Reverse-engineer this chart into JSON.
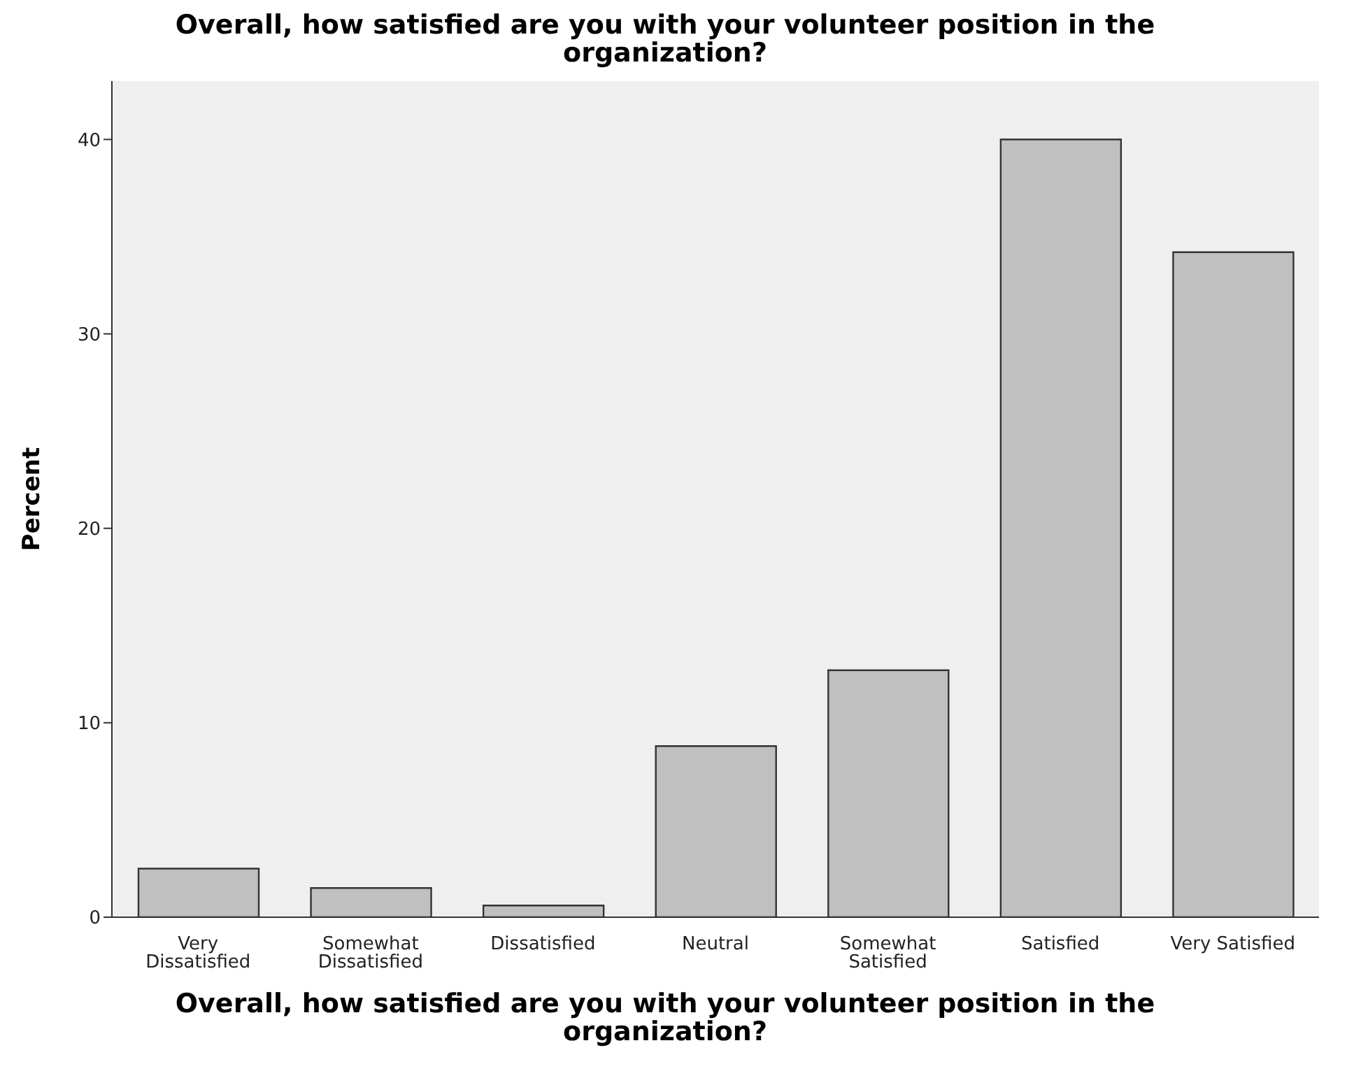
{
  "chart_data": {
    "type": "bar",
    "title": "Overall, how satisfied are you with your volunteer position in the organization?",
    "xlabel": "Overall, how satisfied are you with your volunteer position in the organization?",
    "ylabel": "Percent",
    "categories": [
      "Very Dissatisfied",
      "Somewhat Dissatisfied",
      "Dissatisfied",
      "Neutral",
      "Somewhat Satisfied",
      "Satisfied",
      "Very Satisfied"
    ],
    "values": [
      2.5,
      1.5,
      0.6,
      8.8,
      12.7,
      40,
      34.2
    ],
    "color": "#c0c0c0",
    "ylim": [
      0,
      43
    ],
    "yticks": [
      0,
      10,
      20,
      30,
      40
    ],
    "grid": false
  }
}
